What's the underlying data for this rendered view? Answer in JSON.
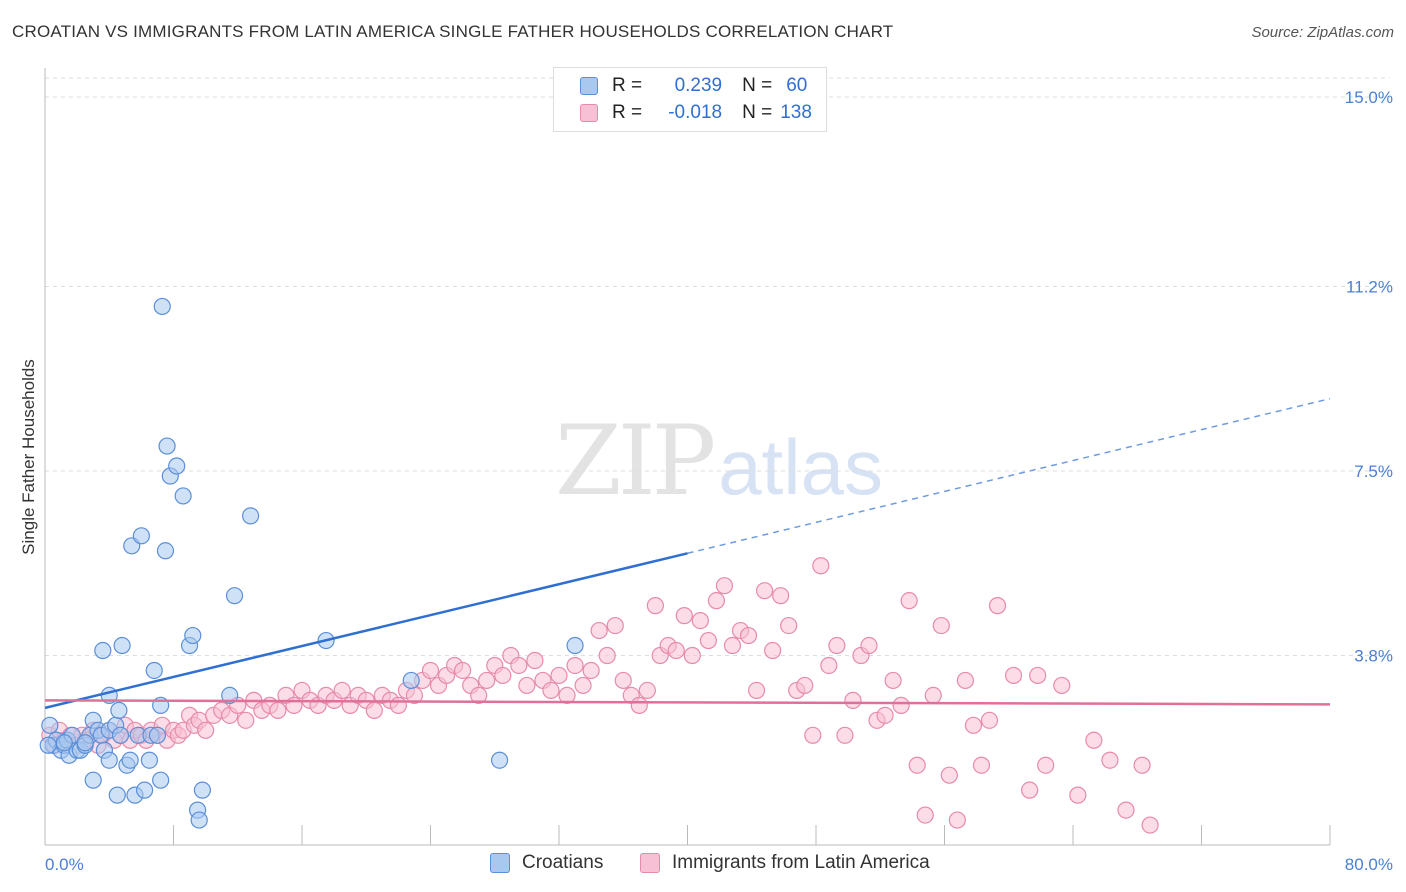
{
  "title": "CROATIAN VS IMMIGRANTS FROM LATIN AMERICA SINGLE FATHER HOUSEHOLDS CORRELATION CHART",
  "source": "Source: ZipAtlas.com",
  "watermark": {
    "zip": "ZIP",
    "atlas": "atlas"
  },
  "legend": {
    "rows": [
      {
        "r_label": "R =",
        "r_value": "0.239",
        "n_label": "N =",
        "n_value": "60",
        "color": "#a8c8f0",
        "border": "#5b8fd8"
      },
      {
        "r_label": "R =",
        "r_value": "-0.018",
        "n_label": "N =",
        "n_value": "138",
        "color": "#f8c0d4",
        "border": "#e88aaa"
      }
    ]
  },
  "bottom_legend": [
    {
      "label": "Croatians",
      "color": "#a8c8f0",
      "border": "#5b8fd8"
    },
    {
      "label": "Immigrants from Latin America",
      "color": "#f8c0d4",
      "border": "#e88aaa"
    }
  ],
  "chart_data": {
    "type": "scatter",
    "ylabel": "Single Father Households",
    "xlim": [
      0,
      80
    ],
    "ylim": [
      0,
      15
    ],
    "x_tick_labels": [
      "0.0%",
      "80.0%"
    ],
    "y_ticks": [
      3.8,
      7.5,
      11.2,
      15.0
    ],
    "y_tick_labels": [
      "3.8%",
      "7.5%",
      "11.2%",
      "15.0%"
    ],
    "grid": true,
    "series": [
      {
        "name": "Croatians",
        "color": "#5b8fd8",
        "fill": "#a8c8f0",
        "trend": {
          "x0": 0,
          "y0": 2.75,
          "x1": 40,
          "y1": 5.85,
          "dash_to_x": 80,
          "dash_to_y": 8.95
        },
        "points": [
          [
            0.3,
            2.4
          ],
          [
            0.5,
            2.0
          ],
          [
            0.7,
            2.1
          ],
          [
            1.0,
            1.9
          ],
          [
            1.2,
            2.0
          ],
          [
            1.4,
            2.1
          ],
          [
            1.5,
            1.8
          ],
          [
            1.7,
            2.2
          ],
          [
            2.0,
            1.9
          ],
          [
            2.2,
            1.9
          ],
          [
            2.5,
            2.0
          ],
          [
            2.8,
            2.2
          ],
          [
            3.0,
            2.5
          ],
          [
            3.0,
            1.3
          ],
          [
            3.3,
            2.3
          ],
          [
            3.5,
            2.2
          ],
          [
            3.7,
            1.9
          ],
          [
            4.0,
            2.3
          ],
          [
            4.0,
            1.7
          ],
          [
            3.6,
            3.9
          ],
          [
            4.0,
            3.0
          ],
          [
            4.4,
            2.4
          ],
          [
            4.5,
            1.0
          ],
          [
            4.6,
            2.7
          ],
          [
            4.7,
            2.2
          ],
          [
            4.8,
            4.0
          ],
          [
            5.1,
            1.6
          ],
          [
            5.3,
            1.7
          ],
          [
            5.4,
            6.0
          ],
          [
            5.6,
            1.0
          ],
          [
            5.8,
            2.2
          ],
          [
            6.0,
            6.2
          ],
          [
            6.2,
            1.1
          ],
          [
            6.5,
            1.7
          ],
          [
            6.6,
            2.2
          ],
          [
            6.8,
            3.5
          ],
          [
            7.0,
            2.2
          ],
          [
            7.2,
            2.8
          ],
          [
            7.2,
            1.3
          ],
          [
            7.3,
            10.8
          ],
          [
            7.5,
            5.9
          ],
          [
            7.6,
            8.0
          ],
          [
            7.8,
            7.4
          ],
          [
            8.2,
            7.6
          ],
          [
            8.6,
            7.0
          ],
          [
            9.0,
            4.0
          ],
          [
            9.2,
            4.2
          ],
          [
            9.5,
            0.7
          ],
          [
            9.6,
            0.5
          ],
          [
            9.8,
            1.1
          ],
          [
            11.5,
            3.0
          ],
          [
            11.8,
            5.0
          ],
          [
            12.8,
            6.6
          ],
          [
            17.5,
            4.1
          ],
          [
            22.8,
            3.3
          ],
          [
            28.3,
            1.7
          ],
          [
            33.0,
            4.0
          ],
          [
            0.2,
            2.0
          ],
          [
            1.2,
            2.05
          ],
          [
            2.5,
            2.05
          ]
        ]
      },
      {
        "name": "Immigrants from Latin America",
        "color": "#e88aaa",
        "fill": "#f8c0d4",
        "trend": {
          "x0": 0,
          "y0": 2.9,
          "x1": 80,
          "y1": 2.82
        },
        "points": [
          [
            0.3,
            2.2
          ],
          [
            0.6,
            2.0
          ],
          [
            0.9,
            2.3
          ],
          [
            1.2,
            2.1
          ],
          [
            1.6,
            2.2
          ],
          [
            2.0,
            2.0
          ],
          [
            2.3,
            2.2
          ],
          [
            2.6,
            2.1
          ],
          [
            3.0,
            2.3
          ],
          [
            3.3,
            2.0
          ],
          [
            3.6,
            2.2
          ],
          [
            4.0,
            2.3
          ],
          [
            4.3,
            2.1
          ],
          [
            4.7,
            2.2
          ],
          [
            5.0,
            2.4
          ],
          [
            5.3,
            2.1
          ],
          [
            5.6,
            2.3
          ],
          [
            6.0,
            2.2
          ],
          [
            6.3,
            2.1
          ],
          [
            6.6,
            2.3
          ],
          [
            7.0,
            2.2
          ],
          [
            7.3,
            2.4
          ],
          [
            7.6,
            2.1
          ],
          [
            8.0,
            2.3
          ],
          [
            8.3,
            2.2
          ],
          [
            8.6,
            2.3
          ],
          [
            9.0,
            2.6
          ],
          [
            9.3,
            2.4
          ],
          [
            9.6,
            2.5
          ],
          [
            10.0,
            2.3
          ],
          [
            10.5,
            2.6
          ],
          [
            11.0,
            2.7
          ],
          [
            11.5,
            2.6
          ],
          [
            12.0,
            2.8
          ],
          [
            12.5,
            2.5
          ],
          [
            13.0,
            2.9
          ],
          [
            13.5,
            2.7
          ],
          [
            14.0,
            2.8
          ],
          [
            14.5,
            2.7
          ],
          [
            15.0,
            3.0
          ],
          [
            15.5,
            2.8
          ],
          [
            16.0,
            3.1
          ],
          [
            16.5,
            2.9
          ],
          [
            17.0,
            2.8
          ],
          [
            17.5,
            3.0
          ],
          [
            18.0,
            2.9
          ],
          [
            18.5,
            3.1
          ],
          [
            19.0,
            2.8
          ],
          [
            19.5,
            3.0
          ],
          [
            20.0,
            2.9
          ],
          [
            20.5,
            2.7
          ],
          [
            21.0,
            3.0
          ],
          [
            21.5,
            2.9
          ],
          [
            22.0,
            2.8
          ],
          [
            22.5,
            3.1
          ],
          [
            23.0,
            3.0
          ],
          [
            23.5,
            3.3
          ],
          [
            24.0,
            3.5
          ],
          [
            24.5,
            3.2
          ],
          [
            25.0,
            3.4
          ],
          [
            25.5,
            3.6
          ],
          [
            26.0,
            3.5
          ],
          [
            26.5,
            3.2
          ],
          [
            27.0,
            3.0
          ],
          [
            27.5,
            3.3
          ],
          [
            28.0,
            3.6
          ],
          [
            28.5,
            3.4
          ],
          [
            29.0,
            3.8
          ],
          [
            29.5,
            3.6
          ],
          [
            30.0,
            3.2
          ],
          [
            30.5,
            3.7
          ],
          [
            31.0,
            3.3
          ],
          [
            31.5,
            3.1
          ],
          [
            32.0,
            3.4
          ],
          [
            32.5,
            3.0
          ],
          [
            33.0,
            3.6
          ],
          [
            33.5,
            3.2
          ],
          [
            34.0,
            3.5
          ],
          [
            34.5,
            4.3
          ],
          [
            35.0,
            3.8
          ],
          [
            35.5,
            4.4
          ],
          [
            36.0,
            3.3
          ],
          [
            36.5,
            3.0
          ],
          [
            37.0,
            2.8
          ],
          [
            37.5,
            3.1
          ],
          [
            38.0,
            4.8
          ],
          [
            38.3,
            3.8
          ],
          [
            38.8,
            4.0
          ],
          [
            39.3,
            3.9
          ],
          [
            39.8,
            4.6
          ],
          [
            40.3,
            3.8
          ],
          [
            40.8,
            4.5
          ],
          [
            41.3,
            4.1
          ],
          [
            41.8,
            4.9
          ],
          [
            42.3,
            5.2
          ],
          [
            42.8,
            4.0
          ],
          [
            43.3,
            4.3
          ],
          [
            43.8,
            4.2
          ],
          [
            44.3,
            3.1
          ],
          [
            44.8,
            5.1
          ],
          [
            45.3,
            3.9
          ],
          [
            45.8,
            5.0
          ],
          [
            46.3,
            4.4
          ],
          [
            46.8,
            3.1
          ],
          [
            47.3,
            3.2
          ],
          [
            47.8,
            2.2
          ],
          [
            48.3,
            5.6
          ],
          [
            48.8,
            3.6
          ],
          [
            49.3,
            4.0
          ],
          [
            49.8,
            2.2
          ],
          [
            50.3,
            2.9
          ],
          [
            50.8,
            3.8
          ],
          [
            51.3,
            4.0
          ],
          [
            51.8,
            2.5
          ],
          [
            52.3,
            2.6
          ],
          [
            52.8,
            3.3
          ],
          [
            53.3,
            2.8
          ],
          [
            53.8,
            4.9
          ],
          [
            54.3,
            1.6
          ],
          [
            54.8,
            0.6
          ],
          [
            55.3,
            3.0
          ],
          [
            55.8,
            4.4
          ],
          [
            56.3,
            1.4
          ],
          [
            56.8,
            0.5
          ],
          [
            57.3,
            3.3
          ],
          [
            57.8,
            2.4
          ],
          [
            58.3,
            1.6
          ],
          [
            58.8,
            2.5
          ],
          [
            59.3,
            4.8
          ],
          [
            60.3,
            3.4
          ],
          [
            61.3,
            1.1
          ],
          [
            61.8,
            3.4
          ],
          [
            62.3,
            1.6
          ],
          [
            63.3,
            3.2
          ],
          [
            64.3,
            1.0
          ],
          [
            65.3,
            2.1
          ],
          [
            66.3,
            1.7
          ],
          [
            67.3,
            0.7
          ],
          [
            68.3,
            1.6
          ],
          [
            68.8,
            0.4
          ]
        ]
      }
    ]
  }
}
